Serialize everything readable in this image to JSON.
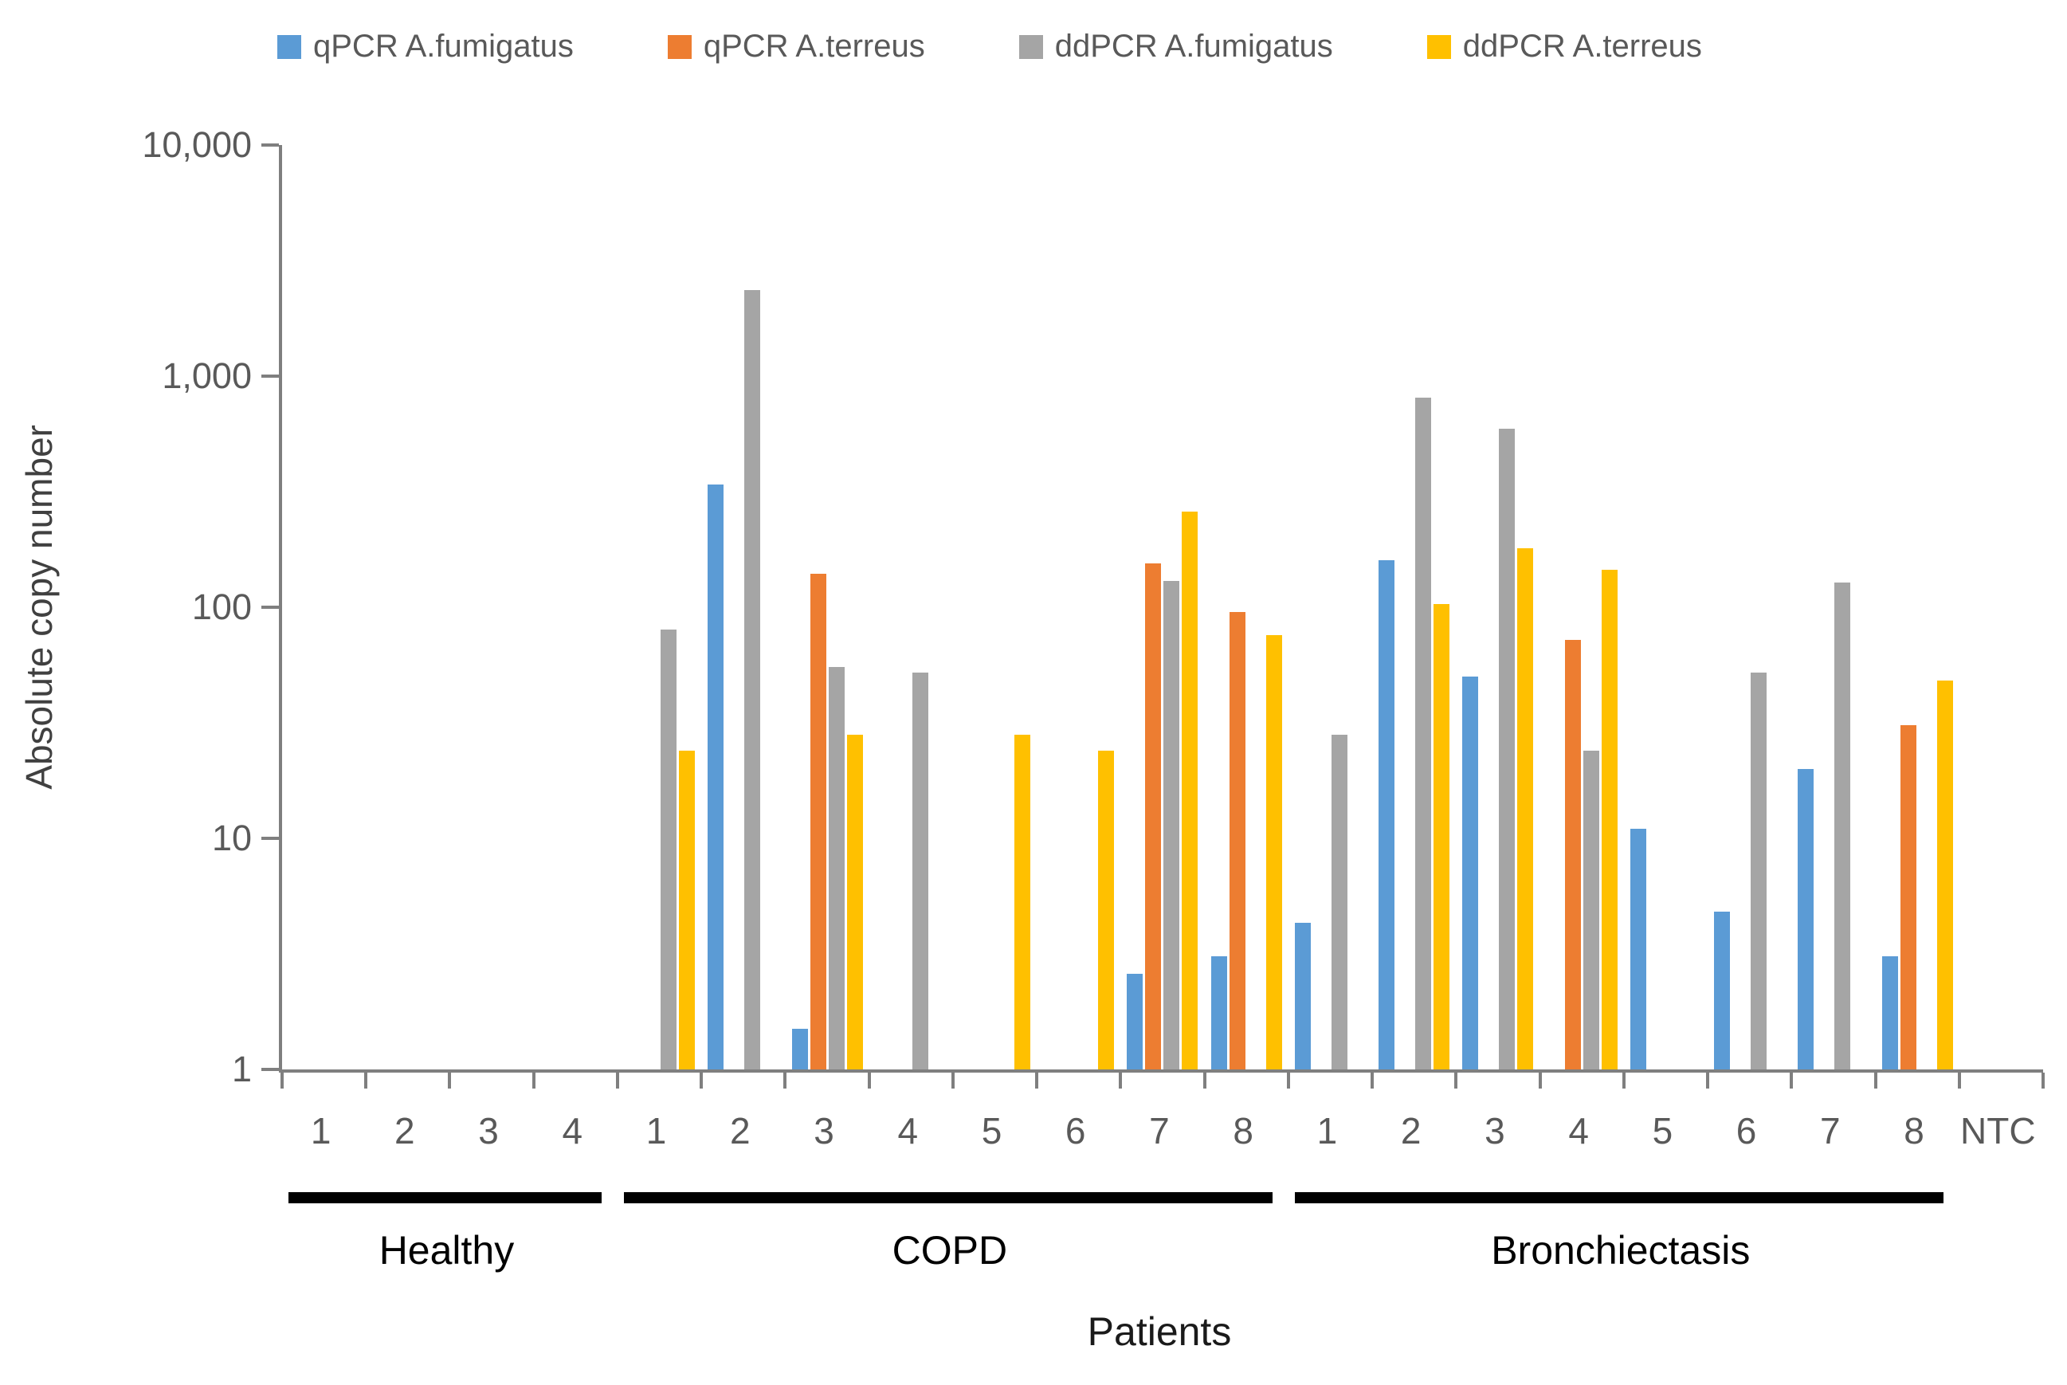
{
  "chart_data": {
    "type": "bar",
    "y_scale": "log",
    "title": "",
    "ylabel": "Absolute copy number",
    "xlabel": "Patients",
    "ylim": [
      1,
      10000
    ],
    "grid": false,
    "legend_position": "top",
    "yticks": [
      {
        "label": "10,000",
        "value": 10000
      },
      {
        "label": "1,000",
        "value": 1000
      },
      {
        "label": "100",
        "value": 100
      },
      {
        "label": "10",
        "value": 10
      },
      {
        "label": "1",
        "value": 1
      }
    ],
    "groups": [
      {
        "label": "Healthy",
        "underline": true,
        "categories": [
          "1",
          "2",
          "3",
          "4"
        ]
      },
      {
        "label": "COPD",
        "underline": true,
        "categories": [
          "1",
          "2",
          "3",
          "4",
          "5",
          "6",
          "7",
          "8"
        ]
      },
      {
        "label": "Bronchiectasis",
        "underline": true,
        "categories": [
          "1",
          "2",
          "3",
          "4",
          "5",
          "6",
          "7",
          "8"
        ]
      },
      {
        "label": "",
        "underline": false,
        "categories": [
          "NTC"
        ]
      }
    ],
    "series": [
      {
        "name": "qPCR A.fumigatus",
        "color": "#5B9BD5",
        "values": [
          null,
          null,
          null,
          null,
          null,
          340,
          1.5,
          null,
          null,
          null,
          2.6,
          3.1,
          4.3,
          160,
          50,
          null,
          11,
          4.8,
          20,
          3.1,
          null
        ]
      },
      {
        "name": "qPCR A.terreus",
        "color": "#ED7D31",
        "values": [
          null,
          null,
          null,
          null,
          null,
          null,
          140,
          null,
          null,
          null,
          155,
          95,
          null,
          null,
          null,
          72,
          null,
          null,
          null,
          31,
          null
        ]
      },
      {
        "name": "ddPCR A.fumigatus",
        "color": "#A5A5A5",
        "values": [
          null,
          null,
          null,
          null,
          80,
          2350,
          55,
          52,
          null,
          null,
          130,
          null,
          28,
          810,
          590,
          24,
          null,
          52,
          128,
          null,
          null
        ]
      },
      {
        "name": "ddPCR A.terreus",
        "color": "#FFC000",
        "values": [
          null,
          null,
          null,
          null,
          24,
          null,
          28,
          null,
          28,
          24,
          260,
          76,
          null,
          103,
          180,
          145,
          null,
          null,
          null,
          48,
          null
        ]
      }
    ]
  }
}
